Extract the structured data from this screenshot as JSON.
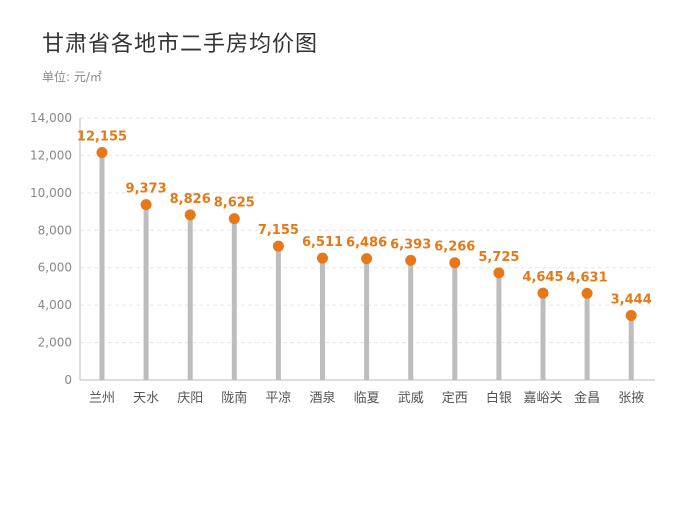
{
  "title": "甘肃省各地市二手房均价图",
  "unit_label": "单位: 元/㎡",
  "colors": {
    "accent": "#e67817",
    "stem": "#bdbdbd",
    "grid": "#e6e6e6",
    "axis": "#bbbbbb"
  },
  "chart_data": {
    "type": "bar",
    "title": "甘肃省各地市二手房均价图",
    "xlabel": "",
    "ylabel": "",
    "ylim": [
      0,
      14000
    ],
    "yticks": [
      0,
      2000,
      4000,
      6000,
      8000,
      10000,
      12000,
      14000
    ],
    "ytick_labels": [
      "0",
      "2,000",
      "4,000",
      "6,000",
      "8,000",
      "10,000",
      "12,000",
      "14,000"
    ],
    "grid": true,
    "categories": [
      "兰州",
      "天水",
      "庆阳",
      "陇南",
      "平凉",
      "酒泉",
      "临夏",
      "武威",
      "定西",
      "白银",
      "嘉峪关",
      "金昌",
      "张掖"
    ],
    "values": [
      12155,
      9373,
      8826,
      8625,
      7155,
      6511,
      6486,
      6393,
      6266,
      5725,
      4645,
      4631,
      3444
    ],
    "value_labels": [
      "12,155",
      "9,373",
      "8,826",
      "8,625",
      "7,155",
      "6,511",
      "6,486",
      "6,393",
      "6,266",
      "5,725",
      "4,645",
      "4,631",
      "3,444"
    ]
  }
}
